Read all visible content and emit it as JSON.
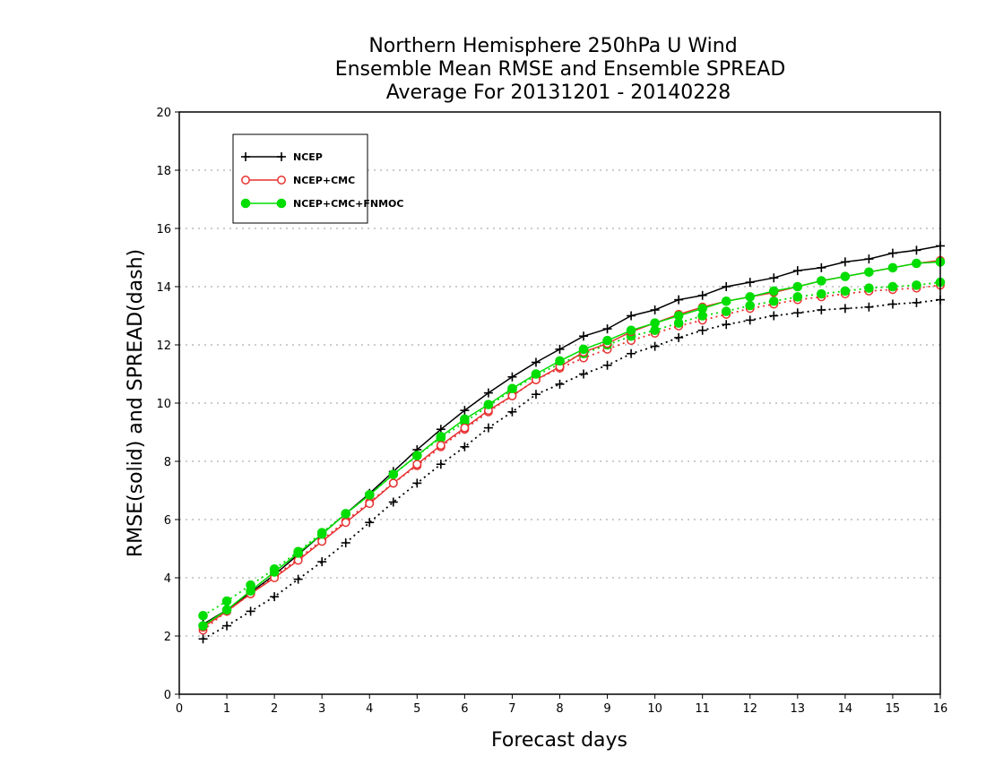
{
  "chart_data": {
    "type": "line",
    "title": [
      "Northern Hemisphere 250hPa U Wind",
      "Ensemble Mean RMSE and Ensemble SPREAD",
      "Average For 20131201 - 20140228"
    ],
    "xlabel": "Forecast days",
    "ylabel": "RMSE(solid) and SPREAD(dash)",
    "xlim": [
      0,
      16
    ],
    "ylim": [
      0,
      20
    ],
    "xticks": [
      0,
      1,
      2,
      3,
      4,
      5,
      6,
      7,
      8,
      9,
      10,
      11,
      12,
      13,
      14,
      15,
      16
    ],
    "yticks": [
      0,
      2,
      4,
      6,
      8,
      10,
      12,
      14,
      16,
      18,
      20
    ],
    "grid": "horizontal dotted",
    "legend_position": "top-left",
    "x": [
      0.5,
      1,
      1.5,
      2,
      2.5,
      3,
      3.5,
      4,
      4.5,
      5,
      5.5,
      6,
      6.5,
      7,
      7.5,
      8,
      8.5,
      9,
      9.5,
      10,
      10.5,
      11,
      11.5,
      12,
      12.5,
      13,
      13.5,
      14,
      14.5,
      15,
      15.5,
      16
    ],
    "series": [
      {
        "name": "NCEP",
        "metric": "RMSE",
        "color": "#000000",
        "marker": "plus",
        "dash": "solid",
        "values": [
          2.4,
          2.9,
          3.5,
          4.1,
          4.8,
          5.5,
          6.2,
          6.9,
          7.65,
          8.4,
          9.1,
          9.75,
          10.35,
          10.9,
          11.4,
          11.85,
          12.3,
          12.55,
          13.0,
          13.2,
          13.55,
          13.7,
          14.0,
          14.15,
          14.3,
          14.55,
          14.65,
          14.85,
          14.95,
          15.15,
          15.25,
          15.4
        ]
      },
      {
        "name": "NCEP+CMC",
        "metric": "RMSE",
        "color": "#e83030",
        "marker": "open-circle",
        "dash": "solid",
        "values": [
          2.3,
          2.85,
          3.45,
          4.0,
          4.6,
          5.25,
          5.9,
          6.55,
          7.25,
          7.9,
          8.55,
          9.15,
          9.75,
          10.25,
          10.8,
          11.25,
          11.75,
          12.05,
          12.45,
          12.75,
          13.05,
          13.3,
          13.5,
          13.65,
          13.8,
          14.0,
          14.2,
          14.35,
          14.5,
          14.65,
          14.8,
          14.9
        ]
      },
      {
        "name": "NCEP+CMC+FNMOC",
        "metric": "RMSE",
        "color": "#00dd00",
        "marker": "filled-circle",
        "dash": "solid",
        "values": [
          2.35,
          2.9,
          3.55,
          4.2,
          4.85,
          5.5,
          6.2,
          6.85,
          7.55,
          8.2,
          8.85,
          9.45,
          9.95,
          10.5,
          11.0,
          11.45,
          11.85,
          12.15,
          12.5,
          12.75,
          13.0,
          13.25,
          13.5,
          13.65,
          13.85,
          14.0,
          14.2,
          14.35,
          14.5,
          14.65,
          14.8,
          14.85
        ]
      },
      {
        "name": "NCEP",
        "metric": "SPREAD",
        "color": "#000000",
        "marker": "plus",
        "dash": "dotted",
        "values": [
          1.9,
          2.35,
          2.85,
          3.35,
          3.95,
          4.55,
          5.2,
          5.9,
          6.6,
          7.25,
          7.9,
          8.5,
          9.15,
          9.7,
          10.3,
          10.65,
          11.0,
          11.3,
          11.7,
          11.95,
          12.25,
          12.5,
          12.7,
          12.85,
          13.0,
          13.1,
          13.2,
          13.25,
          13.3,
          13.4,
          13.45,
          13.55
        ]
      },
      {
        "name": "NCEP+CMC",
        "metric": "SPREAD",
        "color": "#e83030",
        "marker": "open-circle",
        "dash": "dotted",
        "values": [
          2.2,
          2.85,
          3.45,
          4.05,
          4.65,
          5.3,
          5.95,
          6.6,
          7.25,
          7.85,
          8.5,
          9.1,
          9.7,
          10.25,
          10.8,
          11.2,
          11.55,
          11.85,
          12.15,
          12.4,
          12.65,
          12.85,
          13.05,
          13.25,
          13.4,
          13.55,
          13.65,
          13.75,
          13.85,
          13.9,
          13.95,
          14.05
        ]
      },
      {
        "name": "NCEP+CMC+FNMOC",
        "metric": "SPREAD",
        "color": "#00dd00",
        "marker": "filled-circle",
        "dash": "dotted",
        "values": [
          2.7,
          3.2,
          3.75,
          4.3,
          4.9,
          5.55,
          6.2,
          6.85,
          7.55,
          8.2,
          8.8,
          9.35,
          9.9,
          10.45,
          10.95,
          11.35,
          11.7,
          12.0,
          12.3,
          12.5,
          12.75,
          13.0,
          13.15,
          13.35,
          13.5,
          13.65,
          13.75,
          13.85,
          13.95,
          14.0,
          14.05,
          14.15
        ]
      }
    ],
    "legend": [
      {
        "label": "NCEP",
        "color": "#000000",
        "marker": "plus"
      },
      {
        "label": "NCEP+CMC",
        "color": "#e83030",
        "marker": "open-circle"
      },
      {
        "label": "NCEP+CMC+FNMOC",
        "color": "#00dd00",
        "marker": "filled-circle"
      }
    ]
  }
}
